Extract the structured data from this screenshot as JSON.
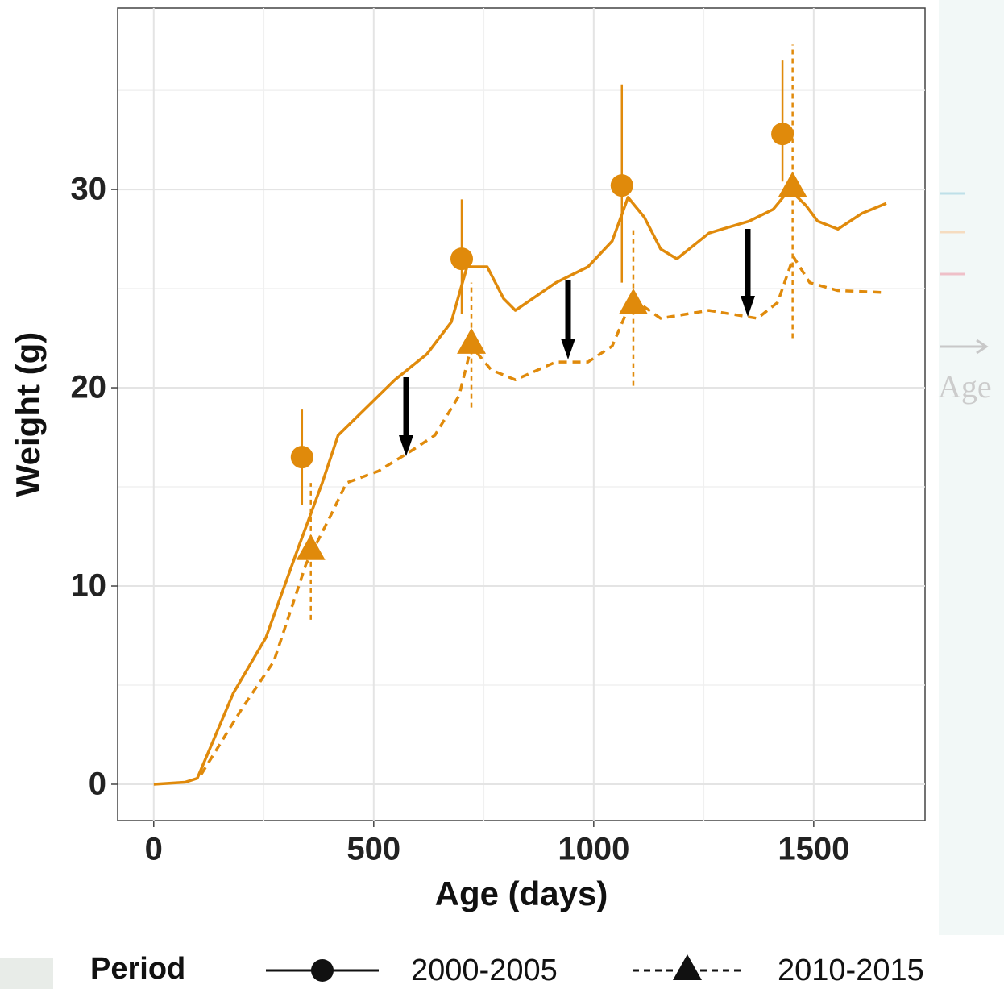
{
  "chart_data": {
    "type": "line",
    "xlabel": "Age (days)",
    "ylabel": "Weight (g)",
    "xlim": [
      -82,
      1753
    ],
    "ylim": [
      -1.83,
      39.15
    ],
    "xticks": [
      0,
      500,
      1000,
      1500
    ],
    "yticks": [
      0,
      10,
      20,
      30
    ],
    "minor_grid_x": [
      250,
      750,
      1250
    ],
    "minor_grid_y": [
      5,
      15,
      25,
      35
    ],
    "grid": true,
    "legend": "bottom",
    "legend_title": "Period",
    "background_text": "Age",
    "series": [
      {
        "name": "2000-2005",
        "color": "#E08A0B",
        "line": "solid",
        "marker": "circle",
        "x": [
          0,
          71,
          99,
          181,
          255,
          328,
          383,
          419,
          456,
          548,
          621,
          676,
          712,
          758,
          795,
          822,
          914,
          987,
          1042,
          1078,
          1115,
          1152,
          1189,
          1262,
          1353,
          1408,
          1445,
          1482,
          1509,
          1555,
          1610,
          1665
        ],
        "values": [
          0,
          0.1,
          0.3,
          4.6,
          7.4,
          11.9,
          15.2,
          17.6,
          18.4,
          20.4,
          21.7,
          23.3,
          26.1,
          26.1,
          24.5,
          23.9,
          25.3,
          26.1,
          27.4,
          29.6,
          28.6,
          27.0,
          26.5,
          27.8,
          28.4,
          29.0,
          30.0,
          29.2,
          28.4,
          28.0,
          28.8,
          29.3
        ],
        "points": {
          "x": [
            337,
            700,
            1064,
            1429
          ],
          "values": [
            16.5,
            26.5,
            30.2,
            32.8
          ],
          "lower": [
            14.1,
            23.7,
            25.3,
            30.4
          ],
          "upper": [
            18.9,
            29.5,
            35.3,
            36.5
          ]
        }
      },
      {
        "name": "2010-2015",
        "color": "#E08A0B",
        "line": "dashed",
        "marker": "triangle",
        "x": [
          108,
          200,
          273,
          346,
          401,
          438,
          511,
          584,
          639,
          694,
          722,
          767,
          822,
          914,
          987,
          1042,
          1088,
          1152,
          1262,
          1372,
          1418,
          1454,
          1491,
          1555,
          1665
        ],
        "values": [
          0.5,
          3.8,
          6.2,
          11.1,
          13.5,
          15.2,
          15.8,
          16.8,
          17.6,
          19.6,
          22.1,
          20.9,
          20.4,
          21.3,
          21.3,
          22.1,
          24.5,
          23.5,
          23.9,
          23.5,
          24.3,
          26.6,
          25.3,
          24.9,
          24.8
        ],
        "points": {
          "x": [
            357,
            722,
            1090,
            1452
          ],
          "values": [
            11.8,
            22.2,
            24.2,
            30.1
          ],
          "lower": [
            8.3,
            19.0,
            20.1,
            22.5
          ],
          "upper": [
            15.2,
            25.3,
            28.0,
            37.3
          ]
        }
      }
    ]
  }
}
